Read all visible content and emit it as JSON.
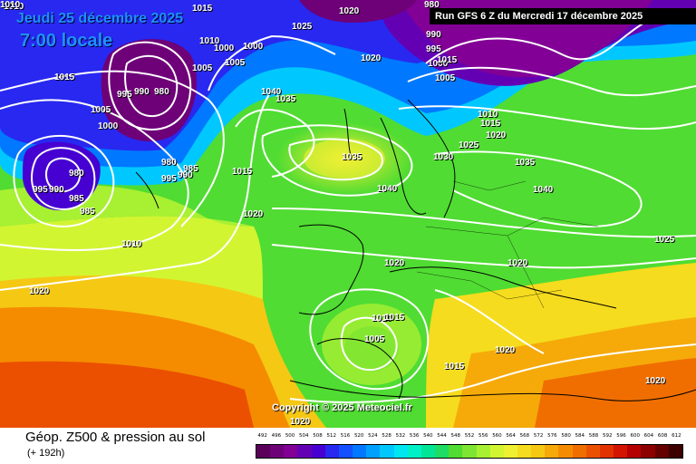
{
  "header": {
    "date": "Jeudi 25 décembre 2025",
    "local_time": "7:00 locale",
    "run": "Run GFS 6 Z du Mercredi 17 décembre 2025"
  },
  "copyright": "Copyright © 2025 Meteociel.fr",
  "footer": {
    "title": "Géop. Z500 & pression au sol",
    "subtitle": "(+ 192h)"
  },
  "scale": {
    "labels": [
      "492",
      "496",
      "500",
      "504",
      "508",
      "512",
      "516",
      "520",
      "524",
      "528",
      "532",
      "536",
      "540",
      "544",
      "548",
      "552",
      "556",
      "560",
      "564",
      "568",
      "572",
      "576",
      "580",
      "584",
      "588",
      "592",
      "596",
      "600",
      "604",
      "608",
      "612"
    ],
    "colors": [
      "#5a005a",
      "#6e0078",
      "#820096",
      "#6400b4",
      "#4600d2",
      "#2828f0",
      "#1450ff",
      "#0078ff",
      "#00a0ff",
      "#00c8ff",
      "#00e6f0",
      "#00f0c8",
      "#00e696",
      "#1edc64",
      "#50dc32",
      "#7ee632",
      "#a8f032",
      "#d2f532",
      "#f0f032",
      "#f5dc1e",
      "#f5c814",
      "#f5aa0a",
      "#f58c00",
      "#f06e00",
      "#eb5000",
      "#e13200",
      "#d21400",
      "#b40000",
      "#8c0000",
      "#640000",
      "#3c0000"
    ]
  },
  "isobar_labels": [
    {
      "text": "1010"
    },
    {
      "text": "1015"
    },
    {
      "text": "1010"
    },
    {
      "text": "1000"
    },
    {
      "text": "1005"
    },
    {
      "text": "1015"
    },
    {
      "text": "995"
    },
    {
      "text": "990"
    },
    {
      "text": "980"
    },
    {
      "text": "1005"
    },
    {
      "text": "1000"
    },
    {
      "text": "980"
    },
    {
      "text": "985"
    },
    {
      "text": "990"
    },
    {
      "text": "995"
    },
    {
      "text": "980"
    },
    {
      "text": "985"
    },
    {
      "text": "995"
    },
    {
      "text": "990"
    },
    {
      "text": "985"
    },
    {
      "text": "1010"
    },
    {
      "text": "1020"
    },
    {
      "text": "1015"
    },
    {
      "text": "1020"
    },
    {
      "text": "1040"
    },
    {
      "text": "1035"
    },
    {
      "text": "1025"
    },
    {
      "text": "1020"
    },
    {
      "text": "1035"
    },
    {
      "text": "1040"
    },
    {
      "text": "1030"
    },
    {
      "text": "990"
    },
    {
      "text": "995"
    },
    {
      "text": "1000"
    },
    {
      "text": "1005"
    },
    {
      "text": "1010"
    },
    {
      "text": "1015"
    },
    {
      "text": "1020"
    },
    {
      "text": "1025"
    },
    {
      "text": "1035"
    },
    {
      "text": "1040"
    },
    {
      "text": "1025"
    },
    {
      "text": "1020"
    },
    {
      "text": "1020"
    },
    {
      "text": "1010"
    },
    {
      "text": "1015"
    },
    {
      "text": "1005"
    },
    {
      "text": "1015"
    },
    {
      "text": "1020"
    },
    {
      "text": "1015"
    },
    {
      "text": "1020"
    },
    {
      "text": "1020"
    },
    {
      "text": "1000"
    },
    {
      "text": "1005"
    },
    {
      "text": "1010"
    },
    {
      "text": "980"
    },
    {
      "text": "1020"
    }
  ]
}
